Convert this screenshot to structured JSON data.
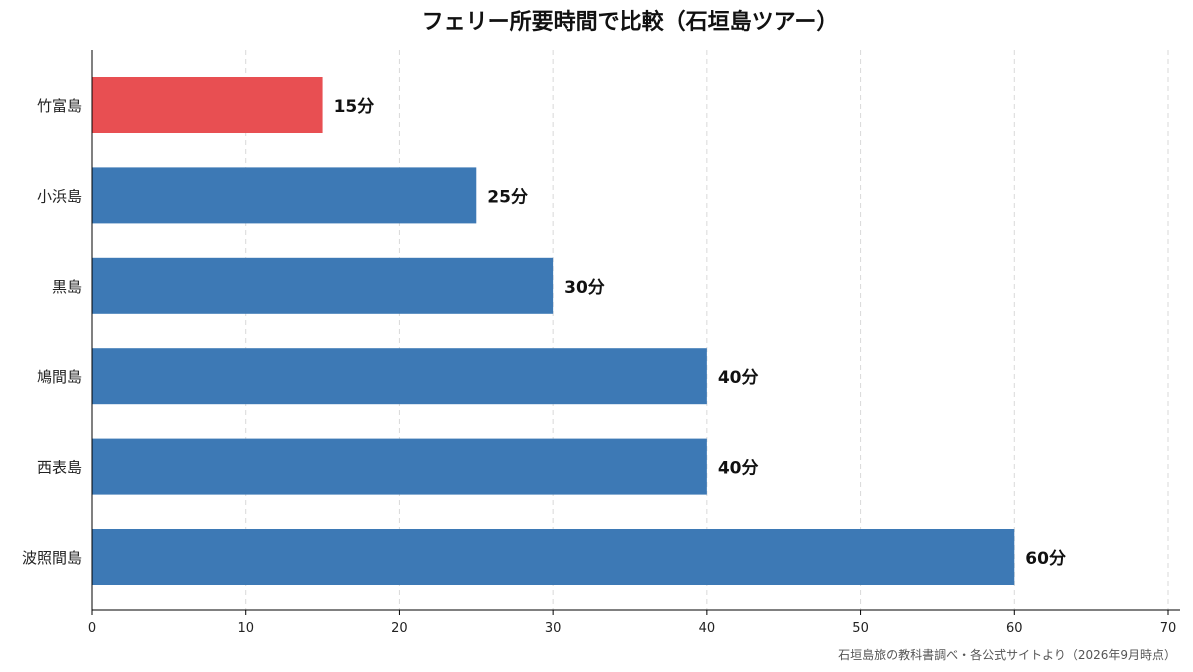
{
  "chart_data": {
    "type": "bar",
    "orientation": "horizontal",
    "title": "フェリー所要時間で比較（石垣島ツアー）",
    "categories": [
      "竹富島",
      "小浜島",
      "黒島",
      "鳩間島",
      "西表島",
      "波照間島"
    ],
    "values": [
      15,
      25,
      30,
      40,
      40,
      60
    ],
    "data_labels": [
      "15分",
      "25分",
      "30分",
      "40分",
      "40分",
      "60分"
    ],
    "highlight_index": 0,
    "colors": {
      "bar": "#3d79b5",
      "highlight": "#e84f52",
      "grid": "#d9d9d9",
      "axis": "#000000"
    },
    "xlim": [
      0,
      70
    ],
    "xticks": [
      0,
      10,
      20,
      30,
      40,
      50,
      60,
      70
    ],
    "xlabel": "",
    "ylabel": "",
    "grid": "x-dashed",
    "source": "石垣島旅の教科書調べ・各公式サイトより（2026年9月時点）"
  }
}
